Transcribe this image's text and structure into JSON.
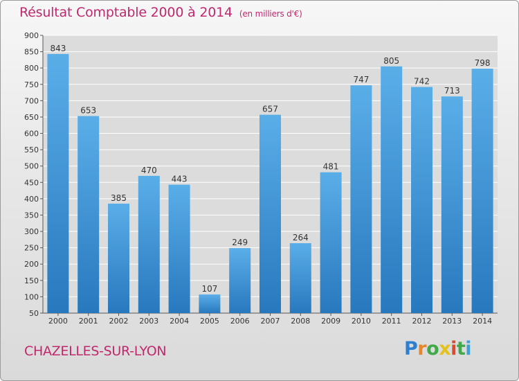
{
  "header": {
    "title": "Résultat Comptable 2000 à 2014",
    "unit": "(en milliers d'€)"
  },
  "footer": {
    "city": "CHAZELLES-SUR-LYON",
    "logo_letters": [
      "P",
      "r",
      "o",
      "x",
      "i",
      "t",
      "i"
    ]
  },
  "colors": {
    "title": "#c0286d",
    "bar_top": "#5aaee8",
    "bar_bottom": "#2878be",
    "grid": "#ffffff"
  },
  "chart_data": {
    "type": "bar",
    "title": "Résultat Comptable 2000 à 2014",
    "subtitle": "(en milliers d'€)",
    "xlabel": "",
    "ylabel": "",
    "categories": [
      "2000",
      "2001",
      "2002",
      "2003",
      "2004",
      "2005",
      "2006",
      "2007",
      "2008",
      "2009",
      "2010",
      "2011",
      "2012",
      "2013",
      "2014"
    ],
    "values": [
      843,
      653,
      385,
      470,
      443,
      107,
      249,
      657,
      264,
      481,
      747,
      805,
      742,
      713,
      798
    ],
    "ylim": [
      50,
      900
    ],
    "yticks": [
      50,
      100,
      150,
      200,
      250,
      300,
      350,
      400,
      450,
      500,
      550,
      600,
      650,
      700,
      750,
      800,
      850,
      900
    ],
    "grid": true,
    "data_labels": true
  }
}
